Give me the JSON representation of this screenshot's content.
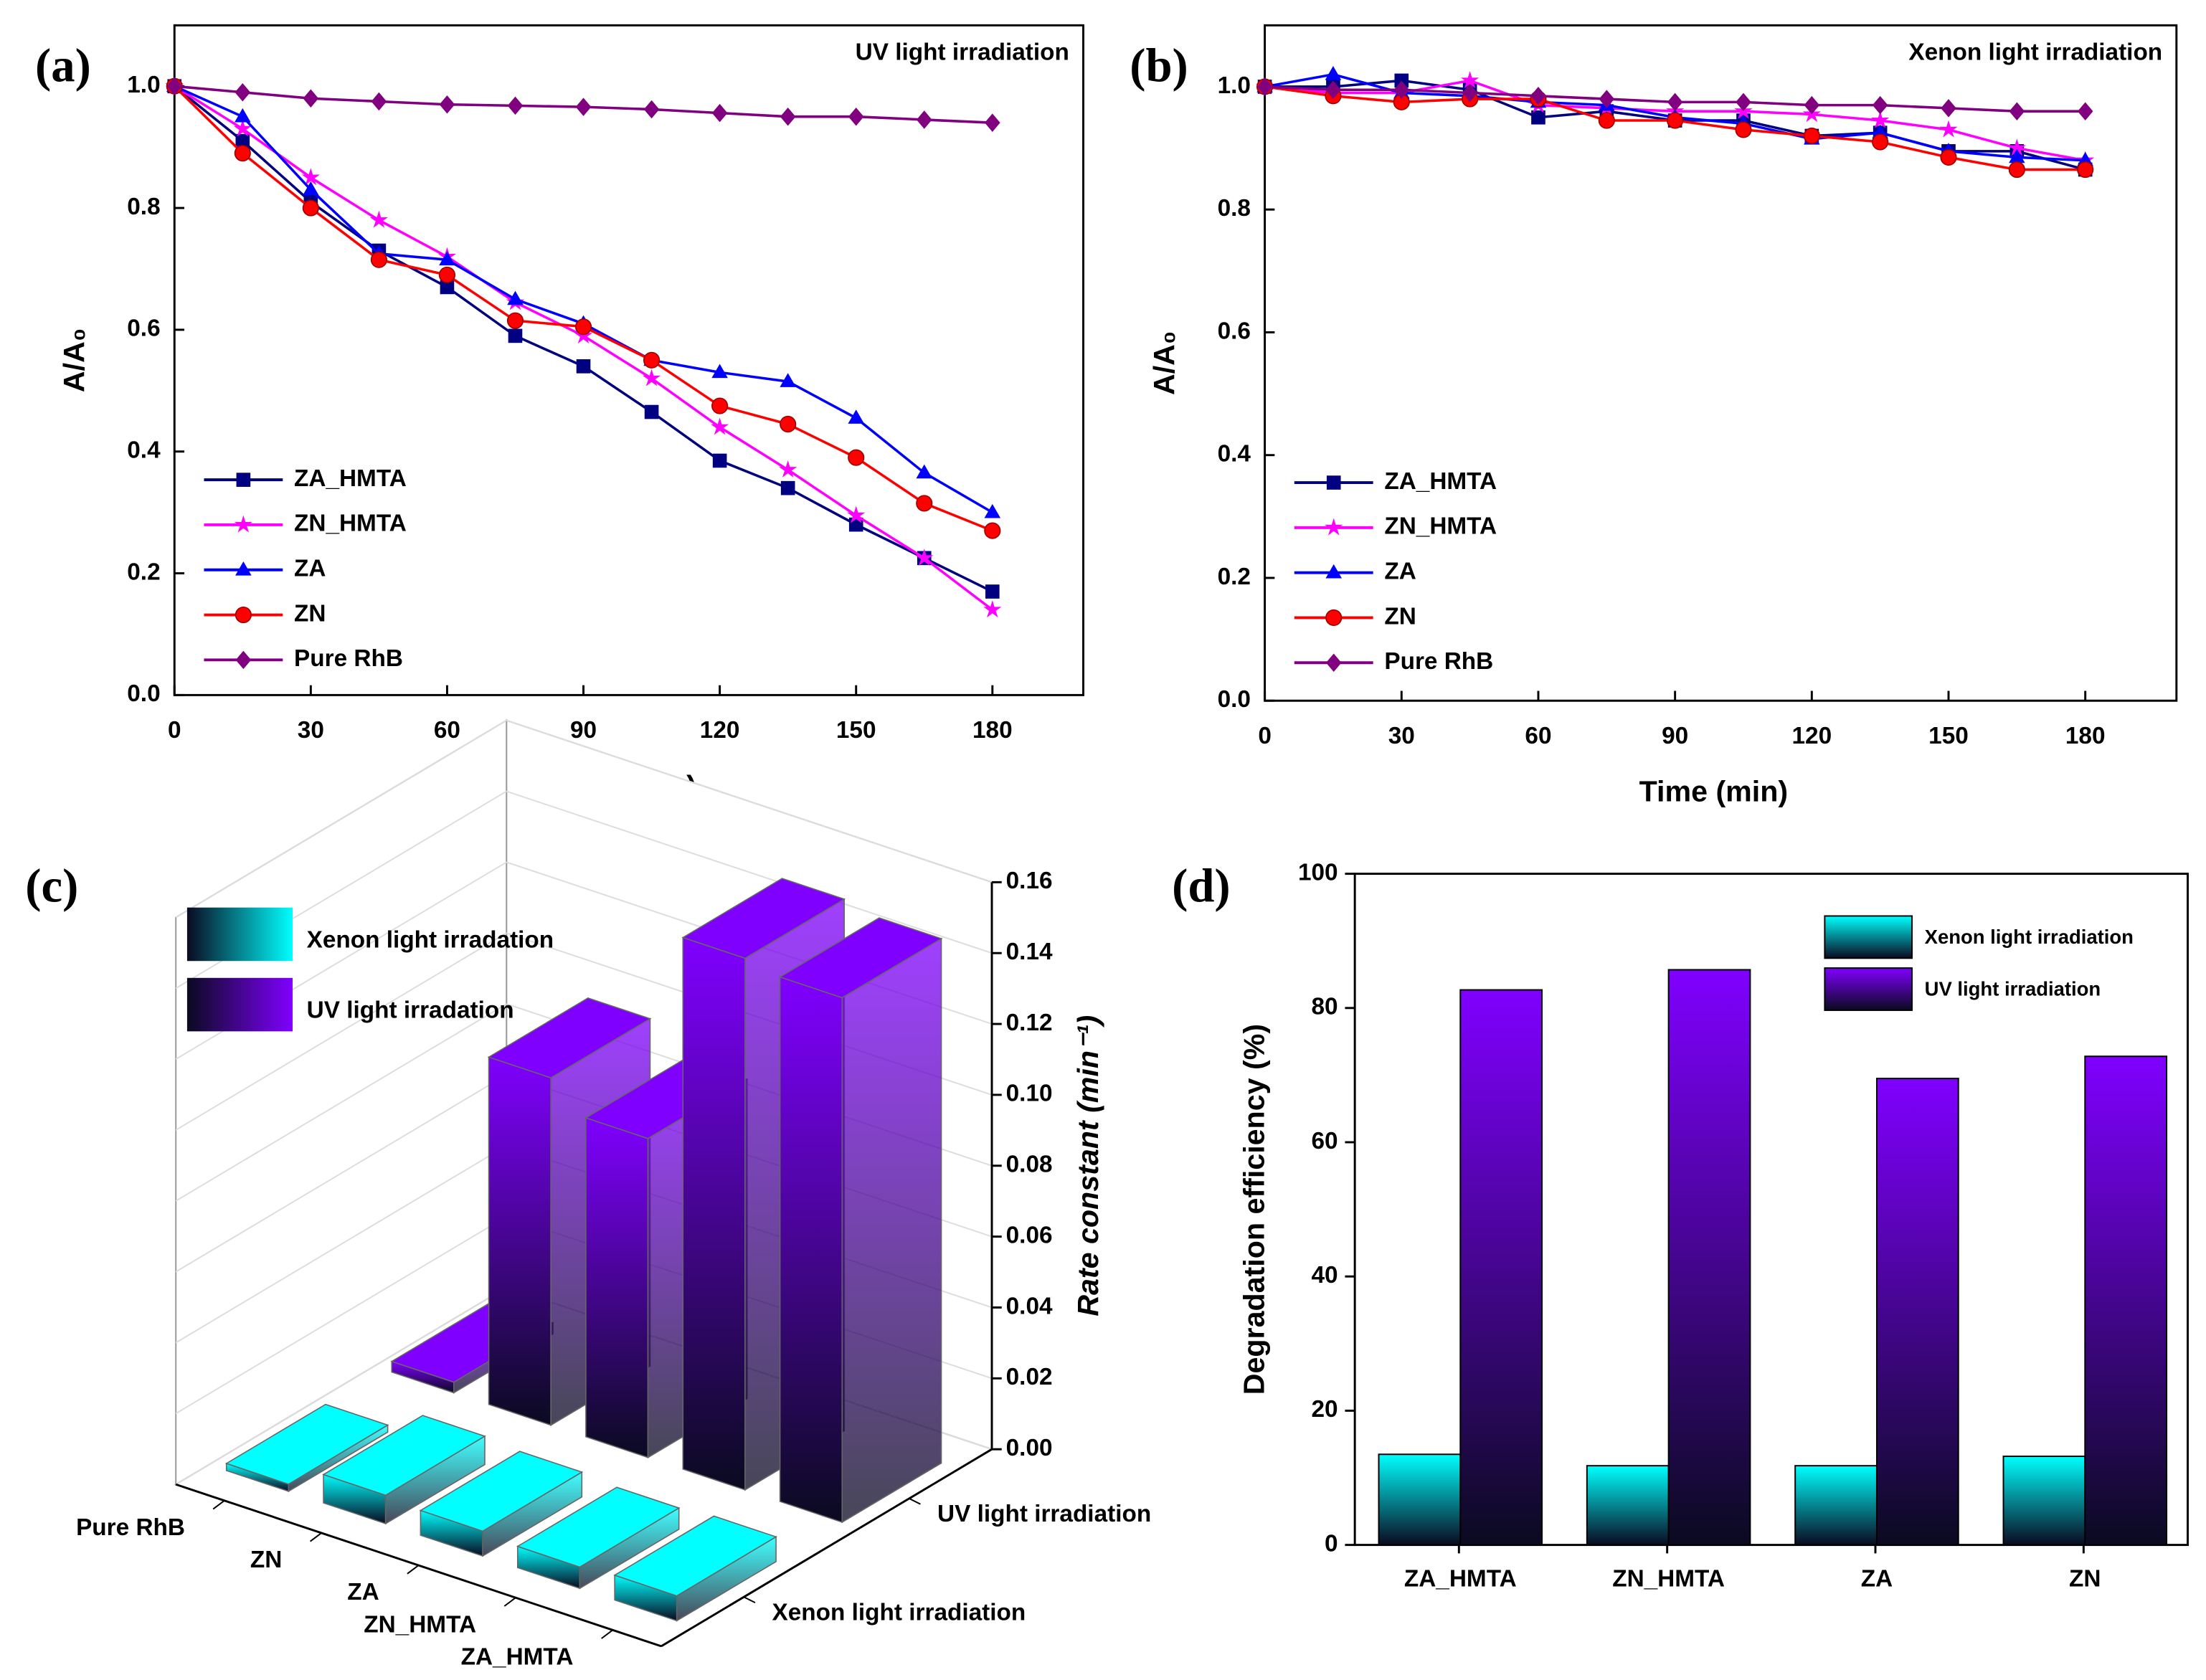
{
  "chart_data": [
    {
      "type": "line",
      "panel_label": "(a)",
      "title": "UV light irradiation",
      "xlabel": "Time (min)",
      "ylabel": "A/A₀",
      "x": [
        0,
        15,
        30,
        45,
        60,
        75,
        90,
        105,
        120,
        135,
        150,
        165,
        180
      ],
      "xlim": [
        0,
        200
      ],
      "xticks": [
        0,
        30,
        60,
        90,
        120,
        150,
        180
      ],
      "ylim": [
        0,
        1.1
      ],
      "yticks": [
        {
          "value": 0,
          "label": "0.0"
        },
        {
          "value": 0.2,
          "label": "0.2"
        },
        {
          "value": 0.4,
          "label": "0.4"
        },
        {
          "value": 0.6,
          "label": "0.6"
        },
        {
          "value": 0.8,
          "label": "0.8"
        },
        {
          "value": 1,
          "label": "1.0"
        }
      ],
      "series": [
        {
          "name": "ZA_HMTA",
          "color": "#000080",
          "marker": "square",
          "values": [
            1.0,
            0.91,
            0.81,
            0.73,
            0.67,
            0.59,
            0.54,
            0.465,
            0.385,
            0.34,
            0.28,
            0.225,
            0.17
          ]
        },
        {
          "name": "ZN_HMTA",
          "color": "#ff00ff",
          "marker": "star",
          "values": [
            1.0,
            0.93,
            0.85,
            0.78,
            0.72,
            0.645,
            0.59,
            0.52,
            0.44,
            0.37,
            0.295,
            0.225,
            0.14
          ]
        },
        {
          "name": "ZA",
          "color": "#0000ff",
          "marker": "triangle",
          "values": [
            1.0,
            0.95,
            0.83,
            0.725,
            0.715,
            0.65,
            0.61,
            0.55,
            0.53,
            0.515,
            0.455,
            0.365,
            0.3
          ]
        },
        {
          "name": "ZN",
          "color": "#ff0000",
          "marker": "circle",
          "values": [
            1.0,
            0.89,
            0.8,
            0.715,
            0.69,
            0.615,
            0.605,
            0.55,
            0.475,
            0.445,
            0.39,
            0.315,
            0.27
          ]
        },
        {
          "name": "Pure RhB",
          "color": "#800080",
          "marker": "diamond",
          "values": [
            1.0,
            0.99,
            0.98,
            0.975,
            0.97,
            0.968,
            0.966,
            0.962,
            0.956,
            0.95,
            0.95,
            0.945,
            0.94
          ]
        }
      ]
    },
    {
      "type": "line",
      "panel_label": "(b)",
      "title": "Xenon light irradiation",
      "xlabel": "Time (min)",
      "ylabel": "A/A₀",
      "x": [
        0,
        15,
        30,
        45,
        60,
        75,
        90,
        105,
        120,
        135,
        150,
        165,
        180
      ],
      "xlim": [
        0,
        200
      ],
      "xticks": [
        0,
        30,
        60,
        90,
        120,
        150,
        180
      ],
      "ylim": [
        0,
        1.1
      ],
      "yticks": [
        {
          "value": 0,
          "label": "0.0"
        },
        {
          "value": 0.2,
          "label": "0.2"
        },
        {
          "value": 0.4,
          "label": "0.4"
        },
        {
          "value": 0.6,
          "label": "0.6"
        },
        {
          "value": 0.8,
          "label": "0.8"
        },
        {
          "value": 1,
          "label": "1.0"
        }
      ],
      "series": [
        {
          "name": "ZA_HMTA",
          "color": "#000080",
          "marker": "square",
          "values": [
            1.0,
            1.0,
            1.01,
            0.995,
            0.95,
            0.96,
            0.945,
            0.945,
            0.92,
            0.925,
            0.895,
            0.895,
            0.865
          ]
        },
        {
          "name": "ZN_HMTA",
          "color": "#ff00ff",
          "marker": "star",
          "values": [
            1.0,
            0.99,
            0.99,
            1.01,
            0.97,
            0.965,
            0.96,
            0.96,
            0.955,
            0.945,
            0.93,
            0.9,
            0.88
          ]
        },
        {
          "name": "ZA",
          "color": "#0000ff",
          "marker": "triangle",
          "values": [
            1.0,
            1.02,
            0.99,
            0.985,
            0.975,
            0.97,
            0.95,
            0.94,
            0.915,
            0.925,
            0.895,
            0.885,
            0.88
          ]
        },
        {
          "name": "ZN",
          "color": "#ff0000",
          "marker": "circle",
          "values": [
            1.0,
            0.985,
            0.975,
            0.98,
            0.98,
            0.945,
            0.945,
            0.93,
            0.92,
            0.91,
            0.885,
            0.865,
            0.865
          ]
        },
        {
          "name": "Pure RhB",
          "color": "#800080",
          "marker": "diamond",
          "values": [
            1.0,
            0.995,
            0.995,
            0.99,
            0.985,
            0.98,
            0.975,
            0.975,
            0.97,
            0.97,
            0.965,
            0.96,
            0.96
          ]
        }
      ]
    },
    {
      "type": "bar3d",
      "panel_label": "(c)",
      "zlabel": "Rate constant (min⁻¹)",
      "categories": [
        "Pure RhB",
        "ZN",
        "ZA",
        "ZN_HMTA",
        "ZA_HMTA"
      ],
      "category_colors": [
        "#800080",
        "#ff0000",
        "#0000ff",
        "#ff00ff",
        "#000080"
      ],
      "depth_labels": [
        "Xenon light irradiation",
        "UV light irradiation"
      ],
      "series": [
        {
          "name": "Xenon light irradation",
          "color": "#00ffff",
          "values": [
            0.002,
            0.008,
            0.007,
            0.006,
            0.007
          ]
        },
        {
          "name": "UV light irradation",
          "color": "#8000ff",
          "values": [
            0.003,
            0.098,
            0.09,
            0.15,
            0.148
          ]
        }
      ],
      "zlim": [
        0,
        0.16
      ],
      "zticks": [
        {
          "value": 0,
          "label": "0.00"
        },
        {
          "value": 0.02,
          "label": "0.02"
        },
        {
          "value": 0.04,
          "label": "0.04"
        },
        {
          "value": 0.06,
          "label": "0.06"
        },
        {
          "value": 0.08,
          "label": "0.08"
        },
        {
          "value": 0.1,
          "label": "0.10"
        },
        {
          "value": 0.12,
          "label": "0.12"
        },
        {
          "value": 0.14,
          "label": "0.14"
        },
        {
          "value": 0.16,
          "label": "0.16"
        }
      ]
    },
    {
      "type": "bar",
      "panel_label": "(d)",
      "ylabel": "Degradation efficiency (%)",
      "categories": [
        "ZA_HMTA",
        "ZN_HMTA",
        "ZA",
        "ZN"
      ],
      "series": [
        {
          "name": "Xenon light irradiation",
          "color": "#00ffff",
          "values": [
            13.5,
            11.8,
            11.8,
            13.2
          ]
        },
        {
          "name": "UV light irradiation",
          "color": "#8000ff",
          "values": [
            82.7,
            85.7,
            69.5,
            72.8
          ]
        }
      ],
      "ylim": [
        0,
        100
      ],
      "yticks": [
        0,
        20,
        40,
        60,
        80,
        100
      ]
    }
  ]
}
